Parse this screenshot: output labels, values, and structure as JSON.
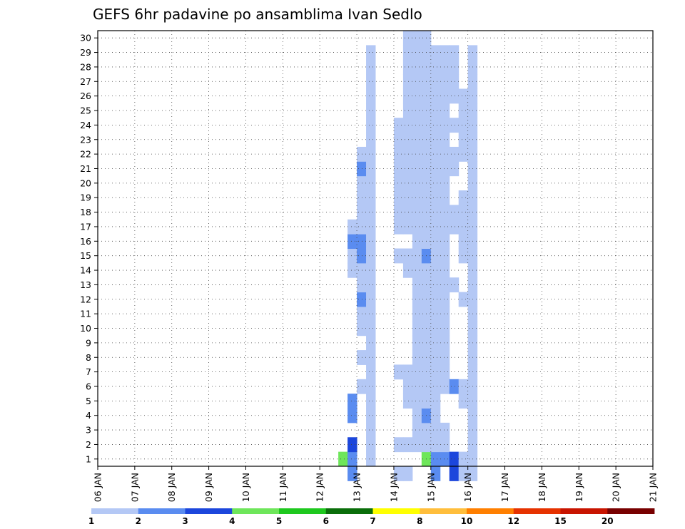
{
  "chart_data": {
    "type": "heatmap",
    "title": "GEFS 6hr padavine po ansamblima Ivan Sedlo",
    "xlabel": "",
    "ylabel": "",
    "x_ticks": [
      "06 JAN",
      "07 JAN",
      "08 JAN",
      "09 JAN",
      "10 JAN",
      "11 JAN",
      "12 JAN",
      "13 JAN",
      "14 JAN",
      "15 JAN",
      "16 JAN",
      "17 JAN",
      "18 JAN",
      "19 JAN",
      "20 JAN",
      "21 JAN"
    ],
    "y_ticks": [
      "1",
      "2",
      "3",
      "4",
      "5",
      "6",
      "7",
      "8",
      "9",
      "10",
      "11",
      "12",
      "13",
      "14",
      "15",
      "16",
      "17",
      "18",
      "19",
      "20",
      "21",
      "22",
      "23",
      "24",
      "25",
      "26",
      "27",
      "28",
      "29",
      "30"
    ],
    "grid": true,
    "colorbar": {
      "labels": [
        "1",
        "2",
        "3",
        "4",
        "5",
        "6",
        "7",
        "8",
        "10",
        "12",
        "15",
        "20"
      ],
      "colors": [
        "#b4c8f5",
        "#5a8cf0",
        "#1c46dc",
        "#6ee65a",
        "#1ec81e",
        "#0a6e0a",
        "#ffff00",
        "#ffbe3c",
        "#ff7f00",
        "#e63200",
        "#c81400",
        "#780000"
      ]
    },
    "class_colors": [
      "#b4c8f5",
      "#5a8cf0",
      "#1c46dc",
      "#6ee65a",
      "#1ec81e",
      "#0a6e0a",
      "#ffff00",
      "#ffbe3c",
      "#ff7f00",
      "#e63200",
      "#c81400",
      "#780000"
    ],
    "cells": [
      [
        26,
        0,
        3
      ],
      [
        27,
        -1,
        1
      ],
      [
        27,
        0,
        1
      ],
      [
        27,
        1,
        2
      ],
      [
        27,
        3,
        1
      ],
      [
        27,
        4,
        1
      ],
      [
        27,
        13,
        0
      ],
      [
        27,
        14,
        0
      ],
      [
        27,
        15,
        1
      ],
      [
        27,
        16,
        0
      ],
      [
        28,
        5,
        0
      ],
      [
        28,
        7,
        0
      ],
      [
        28,
        9,
        0
      ],
      [
        28,
        10,
        0
      ],
      [
        28,
        11,
        1
      ],
      [
        28,
        12,
        0
      ],
      [
        28,
        13,
        0
      ],
      [
        28,
        14,
        1
      ],
      [
        28,
        15,
        1
      ],
      [
        28,
        16,
        0
      ],
      [
        28,
        17,
        0
      ],
      [
        28,
        18,
        0
      ],
      [
        28,
        19,
        0
      ],
      [
        28,
        20,
        1
      ],
      [
        28,
        21,
        0
      ],
      [
        29,
        0,
        0
      ],
      [
        29,
        1,
        0
      ],
      [
        29,
        2,
        0
      ],
      [
        29,
        3,
        0
      ],
      [
        29,
        4,
        0
      ],
      [
        29,
        5,
        0
      ],
      [
        29,
        6,
        0
      ],
      [
        29,
        7,
        0
      ],
      [
        29,
        8,
        0
      ],
      [
        29,
        9,
        0
      ],
      [
        29,
        10,
        0
      ],
      [
        29,
        11,
        0
      ],
      [
        29,
        12,
        0
      ],
      [
        29,
        13,
        0
      ],
      [
        29,
        14,
        0
      ],
      [
        29,
        15,
        0
      ],
      [
        29,
        16,
        0
      ],
      [
        29,
        17,
        0
      ],
      [
        29,
        18,
        0
      ],
      [
        29,
        19,
        0
      ],
      [
        29,
        20,
        0
      ],
      [
        29,
        21,
        0
      ],
      [
        29,
        22,
        0
      ],
      [
        29,
        23,
        0
      ],
      [
        29,
        24,
        0
      ],
      [
        29,
        25,
        0
      ],
      [
        29,
        26,
        0
      ],
      [
        29,
        27,
        0
      ],
      [
        29,
        28,
        0
      ],
      [
        32,
        -1,
        0
      ],
      [
        32,
        1,
        0
      ],
      [
        32,
        6,
        0
      ],
      [
        32,
        14,
        0
      ],
      [
        32,
        16,
        0
      ],
      [
        32,
        17,
        0
      ],
      [
        32,
        18,
        0
      ],
      [
        32,
        19,
        0
      ],
      [
        32,
        20,
        0
      ],
      [
        32,
        21,
        0
      ],
      [
        32,
        22,
        0
      ],
      [
        32,
        23,
        0
      ],
      [
        33,
        -1,
        0
      ],
      [
        33,
        1,
        0
      ],
      [
        33,
        4,
        0
      ],
      [
        33,
        5,
        0
      ],
      [
        33,
        6,
        0
      ],
      [
        33,
        13,
        0
      ],
      [
        33,
        14,
        0
      ],
      [
        33,
        16,
        0
      ],
      [
        33,
        17,
        0
      ],
      [
        33,
        18,
        0
      ],
      [
        33,
        19,
        0
      ],
      [
        33,
        20,
        0
      ],
      [
        33,
        21,
        0
      ],
      [
        33,
        22,
        0
      ],
      [
        33,
        23,
        0
      ],
      [
        33,
        24,
        0
      ],
      [
        33,
        25,
        0
      ],
      [
        33,
        26,
        0
      ],
      [
        33,
        27,
        0
      ],
      [
        33,
        28,
        0
      ],
      [
        33,
        29,
        0
      ],
      [
        34,
        1,
        0
      ],
      [
        34,
        2,
        0
      ],
      [
        34,
        3,
        0
      ],
      [
        34,
        4,
        0
      ],
      [
        34,
        5,
        0
      ],
      [
        34,
        6,
        0
      ],
      [
        34,
        7,
        0
      ],
      [
        34,
        8,
        0
      ],
      [
        34,
        9,
        0
      ],
      [
        34,
        10,
        0
      ],
      [
        34,
        11,
        0
      ],
      [
        34,
        12,
        0
      ],
      [
        34,
        13,
        0
      ],
      [
        34,
        14,
        0
      ],
      [
        34,
        15,
        0
      ],
      [
        34,
        16,
        0
      ],
      [
        34,
        17,
        0
      ],
      [
        34,
        18,
        0
      ],
      [
        34,
        19,
        0
      ],
      [
        34,
        20,
        0
      ],
      [
        34,
        21,
        0
      ],
      [
        34,
        22,
        0
      ],
      [
        34,
        23,
        0
      ],
      [
        34,
        24,
        0
      ],
      [
        34,
        25,
        0
      ],
      [
        34,
        26,
        0
      ],
      [
        34,
        27,
        0
      ],
      [
        34,
        28,
        0
      ],
      [
        34,
        29,
        0
      ],
      [
        35,
        0,
        3
      ],
      [
        35,
        1,
        0
      ],
      [
        35,
        2,
        0
      ],
      [
        35,
        3,
        1
      ],
      [
        35,
        4,
        0
      ],
      [
        35,
        5,
        0
      ],
      [
        35,
        6,
        0
      ],
      [
        35,
        7,
        0
      ],
      [
        35,
        8,
        0
      ],
      [
        35,
        9,
        0
      ],
      [
        35,
        10,
        0
      ],
      [
        35,
        11,
        0
      ],
      [
        35,
        12,
        0
      ],
      [
        35,
        13,
        0
      ],
      [
        35,
        14,
        1
      ],
      [
        35,
        15,
        0
      ],
      [
        35,
        16,
        0
      ],
      [
        35,
        17,
        0
      ],
      [
        35,
        18,
        0
      ],
      [
        35,
        19,
        0
      ],
      [
        35,
        20,
        0
      ],
      [
        35,
        21,
        0
      ],
      [
        35,
        22,
        0
      ],
      [
        35,
        23,
        0
      ],
      [
        35,
        24,
        0
      ],
      [
        35,
        25,
        0
      ],
      [
        35,
        26,
        0
      ],
      [
        35,
        27,
        0
      ],
      [
        35,
        28,
        0
      ],
      [
        35,
        29,
        0
      ],
      [
        36,
        -1,
        1
      ],
      [
        36,
        0,
        1
      ],
      [
        36,
        1,
        0
      ],
      [
        36,
        2,
        0
      ],
      [
        36,
        3,
        0
      ],
      [
        36,
        4,
        0
      ],
      [
        36,
        5,
        0
      ],
      [
        36,
        6,
        0
      ],
      [
        36,
        7,
        0
      ],
      [
        36,
        8,
        0
      ],
      [
        36,
        9,
        0
      ],
      [
        36,
        10,
        0
      ],
      [
        36,
        11,
        0
      ],
      [
        36,
        12,
        0
      ],
      [
        36,
        13,
        0
      ],
      [
        36,
        14,
        0
      ],
      [
        36,
        15,
        0
      ],
      [
        36,
        16,
        0
      ],
      [
        36,
        17,
        0
      ],
      [
        36,
        18,
        0
      ],
      [
        36,
        19,
        0
      ],
      [
        36,
        20,
        0
      ],
      [
        36,
        21,
        0
      ],
      [
        36,
        22,
        0
      ],
      [
        36,
        23,
        0
      ],
      [
        36,
        24,
        0
      ],
      [
        36,
        25,
        0
      ],
      [
        36,
        26,
        0
      ],
      [
        36,
        27,
        0
      ],
      [
        36,
        28,
        0
      ],
      [
        37,
        0,
        1
      ],
      [
        37,
        1,
        0
      ],
      [
        37,
        2,
        0
      ],
      [
        37,
        5,
        0
      ],
      [
        37,
        6,
        0
      ],
      [
        37,
        7,
        0
      ],
      [
        37,
        8,
        0
      ],
      [
        37,
        9,
        0
      ],
      [
        37,
        10,
        0
      ],
      [
        37,
        11,
        0
      ],
      [
        37,
        12,
        0
      ],
      [
        37,
        13,
        0
      ],
      [
        37,
        14,
        0
      ],
      [
        37,
        15,
        0
      ],
      [
        37,
        16,
        0
      ],
      [
        37,
        17,
        0
      ],
      [
        37,
        18,
        0
      ],
      [
        37,
        19,
        0
      ],
      [
        37,
        20,
        0
      ],
      [
        37,
        21,
        0
      ],
      [
        37,
        22,
        0
      ],
      [
        37,
        23,
        0
      ],
      [
        37,
        24,
        0
      ],
      [
        37,
        25,
        0
      ],
      [
        37,
        26,
        0
      ],
      [
        37,
        27,
        0
      ],
      [
        37,
        28,
        0
      ],
      [
        38,
        -1,
        2
      ],
      [
        38,
        0,
        2
      ],
      [
        38,
        5,
        1
      ],
      [
        38,
        12,
        0
      ],
      [
        38,
        16,
        0
      ],
      [
        38,
        17,
        0
      ],
      [
        38,
        20,
        0
      ],
      [
        38,
        21,
        0
      ],
      [
        38,
        23,
        0
      ],
      [
        38,
        25,
        0
      ],
      [
        38,
        26,
        0
      ],
      [
        38,
        27,
        0
      ],
      [
        38,
        28,
        0
      ],
      [
        39,
        -1,
        0
      ],
      [
        39,
        0,
        0
      ],
      [
        39,
        4,
        0
      ],
      [
        39,
        5,
        0
      ],
      [
        39,
        11,
        0
      ],
      [
        39,
        14,
        0
      ],
      [
        39,
        15,
        0
      ],
      [
        39,
        16,
        0
      ],
      [
        39,
        17,
        0
      ],
      [
        39,
        18,
        0
      ],
      [
        39,
        21,
        0
      ],
      [
        39,
        22,
        0
      ],
      [
        39,
        23,
        0
      ],
      [
        39,
        24,
        0
      ],
      [
        39,
        25,
        0
      ],
      [
        40,
        -1,
        0
      ],
      [
        40,
        0,
        0
      ],
      [
        40,
        1,
        0
      ],
      [
        40,
        2,
        0
      ],
      [
        40,
        3,
        0
      ],
      [
        40,
        4,
        0
      ],
      [
        40,
        5,
        0
      ],
      [
        40,
        6,
        0
      ],
      [
        40,
        7,
        0
      ],
      [
        40,
        8,
        0
      ],
      [
        40,
        9,
        0
      ],
      [
        40,
        10,
        0
      ],
      [
        40,
        11,
        0
      ],
      [
        40,
        12,
        0
      ],
      [
        40,
        13,
        0
      ],
      [
        40,
        14,
        0
      ],
      [
        40,
        15,
        0
      ],
      [
        40,
        16,
        0
      ],
      [
        40,
        17,
        0
      ],
      [
        40,
        18,
        0
      ],
      [
        40,
        19,
        0
      ],
      [
        40,
        20,
        0
      ],
      [
        40,
        21,
        0
      ],
      [
        40,
        22,
        0
      ],
      [
        40,
        23,
        0
      ],
      [
        40,
        24,
        0
      ],
      [
        40,
        25,
        0
      ],
      [
        40,
        26,
        0
      ],
      [
        40,
        27,
        0
      ],
      [
        40,
        28,
        0
      ]
    ]
  }
}
